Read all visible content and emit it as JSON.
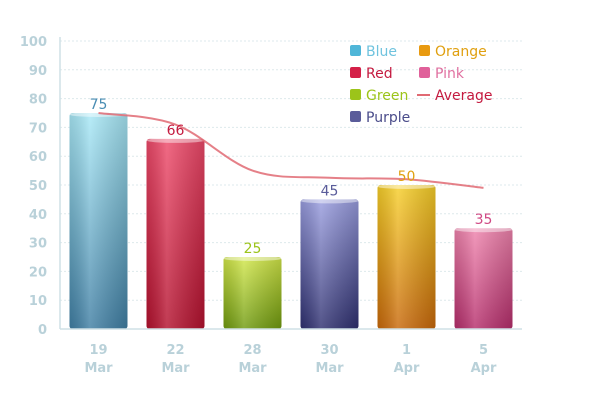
{
  "chart_data": {
    "type": "bar",
    "categories": [
      {
        "line1": "19",
        "line2": "Mar"
      },
      {
        "line1": "22",
        "line2": "Mar"
      },
      {
        "line1": "28",
        "line2": "Mar"
      },
      {
        "line1": "30",
        "line2": "Mar"
      },
      {
        "line1": "1",
        "line2": "Apr"
      },
      {
        "line1": "5",
        "line2": "Apr"
      }
    ],
    "bars": [
      {
        "name": "Blue",
        "value": 75,
        "color_top": "#a9e9f7",
        "color_bottom": "#3f7ea3",
        "label_color": "#4a8db3"
      },
      {
        "name": "Red",
        "value": 66,
        "color_top": "#ee4a6a",
        "color_bottom": "#b3112e",
        "label_color": "#c41a3f"
      },
      {
        "name": "Green",
        "value": 25,
        "color_top": "#d3e84a",
        "color_bottom": "#6f9a0e",
        "label_color": "#9cc41a"
      },
      {
        "name": "Purple",
        "value": 45,
        "color_top": "#9a9ee0",
        "color_bottom": "#2e2f6f",
        "label_color": "#5a5c9a"
      },
      {
        "name": "Orange",
        "value": 50,
        "color_top": "#f7d02a",
        "color_bottom": "#c8680a",
        "label_color": "#e0a010"
      },
      {
        "name": "Pink",
        "value": 35,
        "color_top": "#ef84ad",
        "color_bottom": "#b52d6b",
        "label_color": "#d04a85"
      }
    ],
    "average": {
      "name": "Average",
      "values": [
        75,
        71,
        55,
        52.5,
        52,
        49
      ],
      "color": "#e06a73"
    },
    "y_ticks": [
      "0",
      "10",
      "20",
      "30",
      "40",
      "50",
      "60",
      "70",
      "80",
      "90",
      "100"
    ],
    "ylim": [
      0,
      100
    ],
    "grid": true,
    "legend": [
      {
        "name": "Blue",
        "color": "#4fb6d8",
        "text_color": "#6fc3de",
        "kind": "box"
      },
      {
        "name": "Orange",
        "color": "#e89a10",
        "text_color": "#e0a010",
        "kind": "box"
      },
      {
        "name": "Red",
        "color": "#d42048",
        "text_color": "#c41a3f",
        "kind": "box"
      },
      {
        "name": "Pink",
        "color": "#e0609a",
        "text_color": "#e070a0",
        "kind": "box"
      },
      {
        "name": "Green",
        "color": "#9cc41a",
        "text_color": "#9cc41a",
        "kind": "box"
      },
      {
        "name": "Average",
        "color": "#e06a73",
        "text_color": "#c41a3f",
        "kind": "line"
      },
      {
        "name": "Purple",
        "color": "#5a5c9a",
        "text_color": "#4a4c8a",
        "kind": "box"
      }
    ],
    "legend_position": "top-right"
  }
}
